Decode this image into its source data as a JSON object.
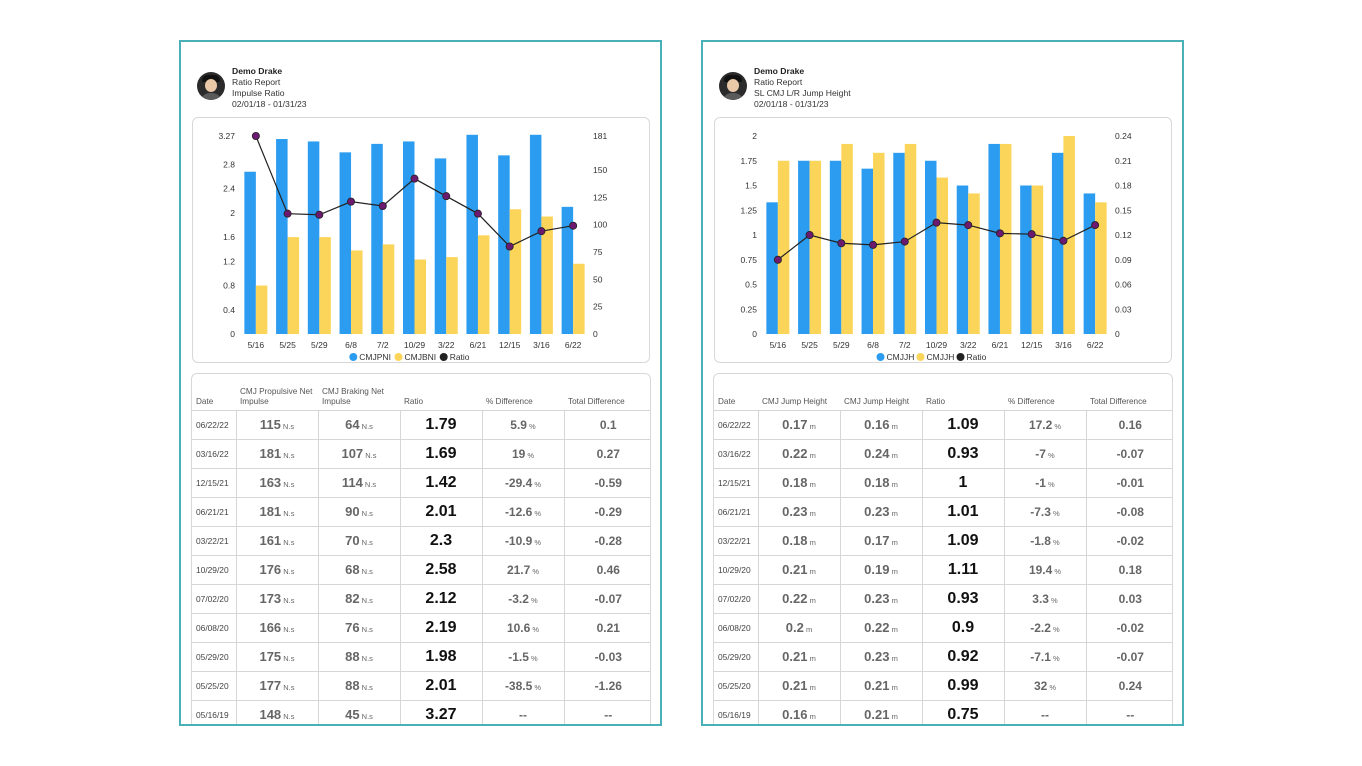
{
  "panels": [
    {
      "header": {
        "name": "Demo Drake",
        "report": "Ratio Report",
        "metric": "Impulse Ratio",
        "range": "02/01/18 - 01/31/23"
      },
      "chart_data": {
        "type": "bar",
        "categories": [
          "5/16",
          "5/25",
          "5/29",
          "6/8",
          "7/2",
          "10/29",
          "3/22",
          "6/21",
          "12/15",
          "3/16",
          "6/22"
        ],
        "series": [
          {
            "name": "CMJPNI",
            "type": "bar",
            "axis": "left",
            "values": [
              2.68,
              3.22,
              3.18,
              3.0,
              3.14,
              3.18,
              2.9,
              3.29,
              2.95,
              3.29,
              2.1
            ],
            "color": "#2b9cf0"
          },
          {
            "name": "CMJBNI",
            "type": "bar",
            "axis": "left",
            "values": [
              0.8,
              1.6,
              1.6,
              1.38,
              1.48,
              1.23,
              1.27,
              1.63,
              2.06,
              1.94,
              1.16
            ],
            "color": "#fbd55a"
          },
          {
            "name": "Ratio",
            "type": "line",
            "axis": "right",
            "values": [
              181,
              110,
              109,
              121,
              117,
              142,
              126,
              110,
              80,
              94,
              99
            ],
            "color": "#222222",
            "marker_color": "#6b1a6f"
          }
        ],
        "y_left": {
          "ticks": [
            "3.27",
            "2.8",
            "2.4",
            "2",
            "1.6",
            "1.2",
            "0.8",
            "0.4",
            "0"
          ],
          "range": [
            0,
            3.27
          ]
        },
        "y_right": {
          "ticks": [
            "181",
            "150",
            "125",
            "100",
            "75",
            "50",
            "25",
            "0"
          ],
          "range": [
            0,
            181
          ]
        },
        "legend": "bottom",
        "grid": false
      },
      "table": {
        "headers": [
          "Date",
          "CMJ Propulsive Net Impulse",
          "CMJ Braking Net Impulse",
          "Ratio",
          "% Difference",
          "Total Difference"
        ],
        "unit": "N.s",
        "pct_unit": "%",
        "rows": [
          [
            "06/22/22",
            "115",
            "64",
            "1.79",
            "5.9",
            "0.1"
          ],
          [
            "03/16/22",
            "181",
            "107",
            "1.69",
            "19",
            "0.27"
          ],
          [
            "12/15/21",
            "163",
            "114",
            "1.42",
            "-29.4",
            "-0.59"
          ],
          [
            "06/21/21",
            "181",
            "90",
            "2.01",
            "-12.6",
            "-0.29"
          ],
          [
            "03/22/21",
            "161",
            "70",
            "2.3",
            "-10.9",
            "-0.28"
          ],
          [
            "10/29/20",
            "176",
            "68",
            "2.58",
            "21.7",
            "0.46"
          ],
          [
            "07/02/20",
            "173",
            "82",
            "2.12",
            "-3.2",
            "-0.07"
          ],
          [
            "06/08/20",
            "166",
            "76",
            "2.19",
            "10.6",
            "0.21"
          ],
          [
            "05/29/20",
            "175",
            "88",
            "1.98",
            "-1.5",
            "-0.03"
          ],
          [
            "05/25/20",
            "177",
            "88",
            "2.01",
            "-38.5",
            "-1.26"
          ],
          [
            "05/16/19",
            "148",
            "45",
            "3.27",
            "--",
            "--"
          ]
        ]
      }
    },
    {
      "header": {
        "name": "Demo Drake",
        "report": "Ratio Report",
        "metric": "SL CMJ L/R Jump Height",
        "range": "02/01/18 - 01/31/23"
      },
      "chart_data": {
        "type": "bar",
        "categories": [
          "5/16",
          "5/25",
          "5/29",
          "6/8",
          "7/2",
          "10/29",
          "3/22",
          "6/21",
          "12/15",
          "3/16",
          "6/22"
        ],
        "series": [
          {
            "name": "CMJJH",
            "type": "bar",
            "axis": "left",
            "values": [
              1.33,
              1.75,
              1.75,
              1.67,
              1.83,
              1.75,
              1.5,
              1.92,
              1.5,
              1.83,
              1.42
            ],
            "color": "#2b9cf0"
          },
          {
            "name": "CMJJH",
            "type": "bar",
            "axis": "left",
            "values": [
              1.75,
              1.75,
              1.92,
              1.83,
              1.92,
              1.58,
              1.42,
              1.92,
              1.5,
              2.0,
              1.33
            ],
            "color": "#fbd55a"
          },
          {
            "name": "Ratio",
            "type": "line",
            "axis": "right",
            "values": [
              0.09,
              0.12,
              0.11,
              0.108,
              0.112,
              0.135,
              0.132,
              0.122,
              0.121,
              0.113,
              0.132
            ],
            "color": "#222222",
            "marker_color": "#6b1a6f"
          }
        ],
        "y_left": {
          "ticks": [
            "2",
            "1.75",
            "1.5",
            "1.25",
            "1",
            "0.75",
            "0.5",
            "0.25",
            "0"
          ],
          "range": [
            0,
            2
          ]
        },
        "y_right": {
          "ticks": [
            "0.24",
            "0.21",
            "0.18",
            "0.15",
            "0.12",
            "0.09",
            "0.06",
            "0.03",
            "0"
          ],
          "range": [
            0,
            0.24
          ]
        },
        "legend": "bottom",
        "grid": false
      },
      "table": {
        "headers": [
          "Date",
          "CMJ Jump Height",
          "CMJ Jump Height",
          "Ratio",
          "% Difference",
          "Total Difference"
        ],
        "unit": "m",
        "pct_unit": "%",
        "rows": [
          [
            "06/22/22",
            "0.17",
            "0.16",
            "1.09",
            "17.2",
            "0.16"
          ],
          [
            "03/16/22",
            "0.22",
            "0.24",
            "0.93",
            "-7",
            "-0.07"
          ],
          [
            "12/15/21",
            "0.18",
            "0.18",
            "1",
            "-1",
            "-0.01"
          ],
          [
            "06/21/21",
            "0.23",
            "0.23",
            "1.01",
            "-7.3",
            "-0.08"
          ],
          [
            "03/22/21",
            "0.18",
            "0.17",
            "1.09",
            "-1.8",
            "-0.02"
          ],
          [
            "10/29/20",
            "0.21",
            "0.19",
            "1.11",
            "19.4",
            "0.18"
          ],
          [
            "07/02/20",
            "0.22",
            "0.23",
            "0.93",
            "3.3",
            "0.03"
          ],
          [
            "06/08/20",
            "0.2",
            "0.22",
            "0.9",
            "-2.2",
            "-0.02"
          ],
          [
            "05/29/20",
            "0.21",
            "0.23",
            "0.92",
            "-7.1",
            "-0.07"
          ],
          [
            "05/25/20",
            "0.21",
            "0.21",
            "0.99",
            "32",
            "0.24"
          ],
          [
            "05/16/19",
            "0.16",
            "0.21",
            "0.75",
            "--",
            "--"
          ]
        ]
      }
    }
  ]
}
